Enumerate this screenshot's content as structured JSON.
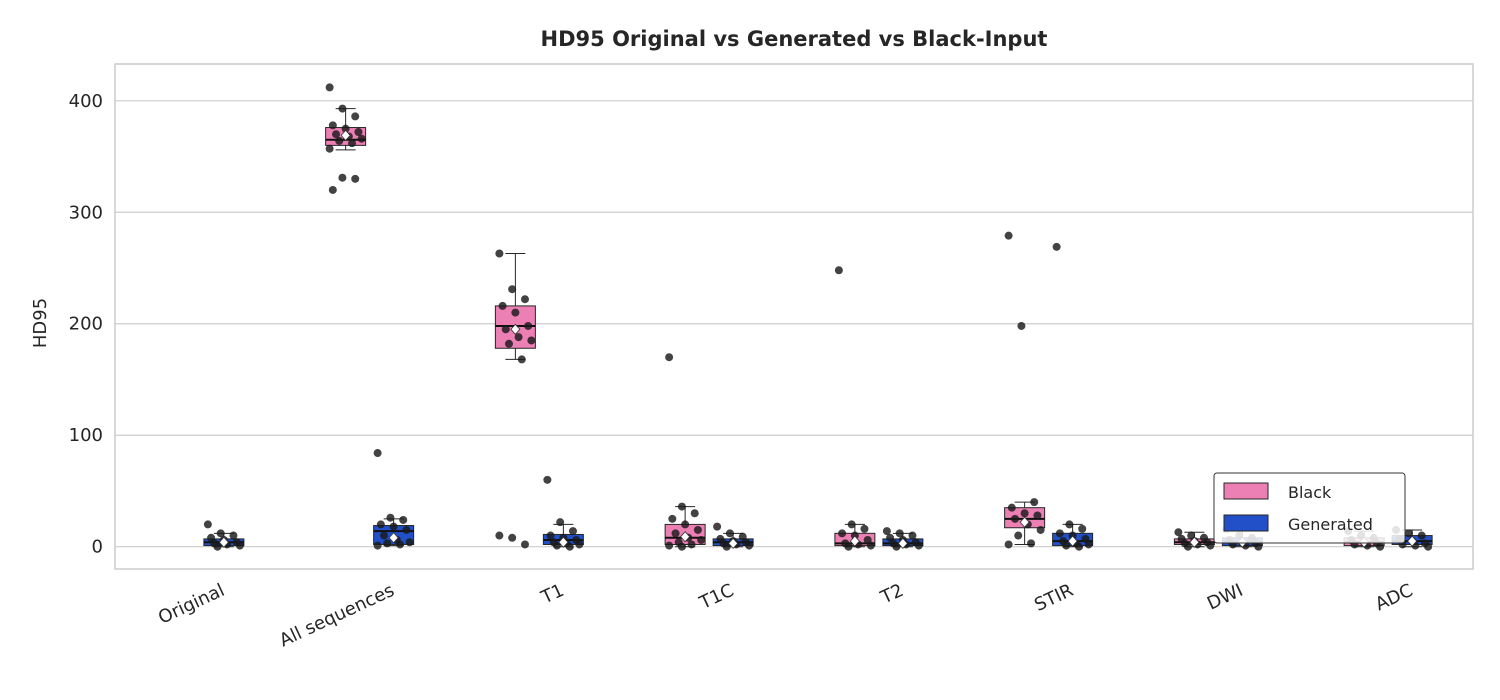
{
  "chart_data": {
    "type": "box",
    "title": "HD95 Original vs Generated vs Black-Input",
    "xlabel": "",
    "ylabel": "HD95",
    "ylim": [
      -20,
      433
    ],
    "yticks": [
      0,
      100,
      200,
      300,
      400
    ],
    "grid": "horizontal",
    "legend_position": "lower-right",
    "categories": [
      "Original",
      "All sequences",
      "T1",
      "T1C",
      "T2",
      "STIR",
      "DWI",
      "ADC"
    ],
    "series": [
      {
        "name": "Black",
        "color": "#ec7fb4",
        "boxes": [
          null,
          {
            "whislo": 356,
            "q1": 360,
            "med": 365,
            "q3": 376,
            "whishi": 393,
            "mean": 369,
            "points": [
              412,
              393,
              386,
              378,
              375,
              372,
              370,
              368,
              366,
              364,
              362,
              357,
              331,
              330,
              320
            ]
          },
          {
            "whislo": 168,
            "q1": 178,
            "med": 198,
            "q3": 216,
            "whishi": 263,
            "mean": 195,
            "points": [
              263,
              231,
              222,
              216,
              210,
              198,
              195,
              188,
              185,
              182,
              168,
              10,
              8,
              2
            ]
          },
          {
            "whislo": 0,
            "q1": 2,
            "med": 8,
            "q3": 20,
            "whishi": 36,
            "mean": 9,
            "points": [
              170,
              36,
              30,
              25,
              20,
              15,
              12,
              8,
              6,
              4,
              2,
              1,
              0
            ]
          },
          {
            "whislo": 0,
            "q1": 1,
            "med": 3,
            "q3": 12,
            "whishi": 20,
            "mean": 5,
            "points": [
              248,
              20,
              16,
              12,
              10,
              6,
              3,
              2,
              1,
              0
            ]
          },
          {
            "whislo": 2,
            "q1": 17,
            "med": 25,
            "q3": 35,
            "whishi": 40,
            "mean": 22,
            "points": [
              279,
              198,
              40,
              35,
              30,
              28,
              25,
              20,
              15,
              10,
              3,
              2
            ]
          },
          {
            "whislo": 0,
            "q1": 2,
            "med": 4,
            "q3": 7,
            "whishi": 13,
            "mean": 4,
            "points": [
              13,
              10,
              8,
              7,
              5,
              4,
              3,
              2,
              1,
              0
            ]
          },
          {
            "whislo": 0,
            "q1": 1,
            "med": 4,
            "q3": 8,
            "whishi": 14,
            "mean": 4,
            "points": [
              14,
              10,
              8,
              6,
              4,
              3,
              2,
              1,
              0
            ]
          }
        ]
      },
      {
        "name": "Generated",
        "color": "#2150c9",
        "boxes": [
          {
            "whislo": 0,
            "q1": 1,
            "med": 4,
            "q3": 7,
            "whishi": 12,
            "mean": 4,
            "points": [
              20,
              12,
              10,
              8,
              6,
              4,
              3,
              2,
              1,
              0
            ]
          },
          {
            "whislo": 1,
            "q1": 2,
            "med": 14,
            "q3": 19,
            "whishi": 25,
            "mean": 8,
            "points": [
              84,
              26,
              24,
              20,
              18,
              15,
              10,
              6,
              4,
              3,
              2,
              1
            ]
          },
          {
            "whislo": 0,
            "q1": 2,
            "med": 6,
            "q3": 11,
            "whishi": 20,
            "mean": 4,
            "points": [
              60,
              22,
              14,
              10,
              8,
              6,
              4,
              3,
              2,
              1,
              0
            ]
          },
          {
            "whislo": 0,
            "q1": 1,
            "med": 4,
            "q3": 7,
            "whishi": 12,
            "mean": 3,
            "points": [
              18,
              12,
              9,
              7,
              5,
              4,
              3,
              2,
              1,
              0
            ]
          },
          {
            "whislo": 0,
            "q1": 1,
            "med": 3,
            "q3": 7,
            "whishi": 12,
            "mean": 3,
            "points": [
              14,
              12,
              10,
              8,
              6,
              4,
              3,
              2,
              1,
              0
            ]
          },
          {
            "whislo": 0,
            "q1": 1,
            "med": 5,
            "q3": 12,
            "whishi": 20,
            "mean": 5,
            "points": [
              269,
              20,
              16,
              12,
              10,
              7,
              5,
              3,
              2,
              1,
              0
            ]
          },
          {
            "whislo": 0,
            "q1": 1,
            "med": 4,
            "q3": 8,
            "whishi": 16,
            "mean": 4,
            "points": [
              16,
              10,
              8,
              6,
              4,
              3,
              2,
              1,
              0
            ]
          },
          {
            "whislo": 0,
            "q1": 2,
            "med": 5,
            "q3": 10,
            "whishi": 15,
            "mean": 5,
            "points": [
              15,
              12,
              10,
              7,
              5,
              3,
              2,
              1,
              0
            ]
          }
        ]
      }
    ]
  }
}
